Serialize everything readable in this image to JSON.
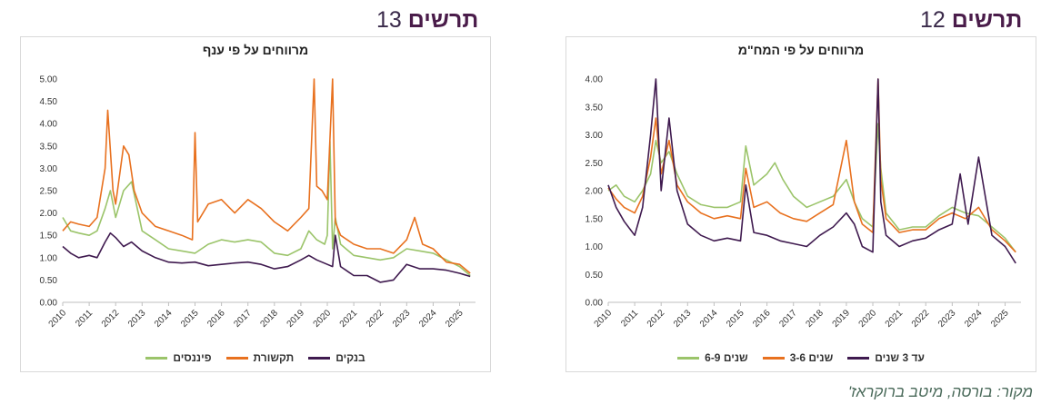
{
  "left_panel": {
    "heading_word": "תרשים",
    "heading_num": "13"
  },
  "right_panel": {
    "heading_word": "תרשים",
    "heading_num": "12"
  },
  "source_note": "מקור: בורסה, מיטב ברוקראז'",
  "chart_data": [
    {
      "type": "line",
      "title": "מרווחים על פי ענף",
      "ylim": [
        0,
        5
      ],
      "yticks": [
        "0.00",
        "0.50",
        "1.00",
        "1.50",
        "2.00",
        "2.50",
        "3.00",
        "3.50",
        "4.00",
        "4.50",
        "5.00"
      ],
      "xlim": [
        2010,
        2025.6
      ],
      "xticks": [
        "2010",
        "2011",
        "2012",
        "2013",
        "2014",
        "2015",
        "2016",
        "2017",
        "2018",
        "2019",
        "2020",
        "2021",
        "2022",
        "2023",
        "2024",
        "2025"
      ],
      "legend_position": "bottom",
      "series": [
        {
          "name": "בנקים",
          "color": "#3f1a4f",
          "x": [
            2010,
            2010.3,
            2010.6,
            2011,
            2011.3,
            2011.6,
            2011.8,
            2012,
            2012.3,
            2012.6,
            2013,
            2013.5,
            2014,
            2014.5,
            2015,
            2015.5,
            2016,
            2016.5,
            2017,
            2017.5,
            2018,
            2018.5,
            2019,
            2019.3,
            2019.6,
            2020,
            2020.2,
            2020.3,
            2020.5,
            2021,
            2021.5,
            2022,
            2022.5,
            2023,
            2023.5,
            2024,
            2024.5,
            2025,
            2025.4
          ],
          "values": [
            1.25,
            1.1,
            1.0,
            1.05,
            1.0,
            1.35,
            1.55,
            1.45,
            1.25,
            1.35,
            1.15,
            1.0,
            0.9,
            0.88,
            0.9,
            0.82,
            0.85,
            0.88,
            0.9,
            0.85,
            0.75,
            0.8,
            0.95,
            1.05,
            0.95,
            0.85,
            0.8,
            1.5,
            0.8,
            0.6,
            0.6,
            0.45,
            0.5,
            0.85,
            0.75,
            0.75,
            0.72,
            0.65,
            0.58
          ]
        },
        {
          "name": "תקשורת",
          "color": "#e8711f",
          "x": [
            2010,
            2010.3,
            2010.6,
            2011,
            2011.3,
            2011.6,
            2011.7,
            2011.9,
            2012,
            2012.3,
            2012.5,
            2012.7,
            2013,
            2013.5,
            2014,
            2014.5,
            2014.9,
            2015,
            2015.1,
            2015.5,
            2016,
            2016.5,
            2017,
            2017.5,
            2018,
            2018.5,
            2019,
            2019.3,
            2019.5,
            2019.6,
            2019.8,
            2020,
            2020.2,
            2020.3,
            2020.5,
            2021,
            2021.5,
            2022,
            2022.5,
            2023,
            2023.3,
            2023.6,
            2024,
            2024.5,
            2025,
            2025.4
          ],
          "values": [
            1.6,
            1.8,
            1.75,
            1.7,
            1.9,
            3.0,
            4.3,
            2.5,
            2.2,
            3.5,
            3.3,
            2.5,
            2.0,
            1.7,
            1.6,
            1.5,
            1.4,
            3.8,
            1.8,
            2.2,
            2.3,
            2.0,
            2.3,
            2.1,
            1.8,
            1.6,
            1.9,
            2.1,
            5.0,
            2.6,
            2.5,
            2.3,
            5.0,
            1.8,
            1.5,
            1.3,
            1.2,
            1.2,
            1.1,
            1.4,
            1.9,
            1.3,
            1.2,
            0.9,
            0.85,
            0.65
          ]
        },
        {
          "name": "פיננסים",
          "color": "#9bc46a",
          "x": [
            2010,
            2010.3,
            2010.6,
            2011,
            2011.3,
            2011.6,
            2011.8,
            2012,
            2012.3,
            2012.6,
            2013,
            2013.5,
            2014,
            2014.5,
            2015,
            2015.5,
            2016,
            2016.5,
            2017,
            2017.5,
            2018,
            2018.5,
            2019,
            2019.3,
            2019.6,
            2019.9,
            2020,
            2020.1,
            2020.2,
            2020.3,
            2020.5,
            2021,
            2021.5,
            2022,
            2022.5,
            2023,
            2023.5,
            2024,
            2024.5,
            2025,
            2025.4
          ],
          "values": [
            1.9,
            1.6,
            1.55,
            1.5,
            1.6,
            2.1,
            2.5,
            1.9,
            2.5,
            2.7,
            1.6,
            1.4,
            1.2,
            1.15,
            1.1,
            1.3,
            1.4,
            1.35,
            1.4,
            1.35,
            1.1,
            1.05,
            1.2,
            1.6,
            1.4,
            1.3,
            1.5,
            3.6,
            1.2,
            1.9,
            1.3,
            1.05,
            1.0,
            0.95,
            1.0,
            1.2,
            1.15,
            1.1,
            0.95,
            0.8,
            0.6
          ]
        }
      ]
    },
    {
      "type": "line",
      "title": "מרווחים על פי המח\"מ",
      "ylim": [
        0,
        4
      ],
      "yticks": [
        "0.00",
        "0.50",
        "1.00",
        "1.50",
        "2.00",
        "2.50",
        "3.00",
        "3.50",
        "4.00"
      ],
      "xlim": [
        2010,
        2025.6
      ],
      "xticks": [
        "2010",
        "2011",
        "2012",
        "2013",
        "2014",
        "2015",
        "2016",
        "2017",
        "2018",
        "2019",
        "2020",
        "2021",
        "2022",
        "2023",
        "2024",
        "2025"
      ],
      "legend_position": "bottom",
      "series": [
        {
          "name": "עד 3 שנים",
          "color": "#3f1a4f",
          "x": [
            2010,
            2010.3,
            2010.6,
            2011,
            2011.3,
            2011.6,
            2011.8,
            2012,
            2012.3,
            2012.6,
            2013,
            2013.5,
            2014,
            2014.5,
            2015,
            2015.2,
            2015.5,
            2016,
            2016.5,
            2017,
            2017.5,
            2018,
            2018.5,
            2019,
            2019.3,
            2019.6,
            2020,
            2020.2,
            2020.3,
            2020.5,
            2021,
            2021.5,
            2022,
            2022.5,
            2023,
            2023.3,
            2023.6,
            2024,
            2024.5,
            2025,
            2025.4
          ],
          "values": [
            2.1,
            1.7,
            1.45,
            1.2,
            1.7,
            3.0,
            4.0,
            2.0,
            3.3,
            2.0,
            1.4,
            1.2,
            1.1,
            1.15,
            1.1,
            2.1,
            1.25,
            1.2,
            1.1,
            1.05,
            1.0,
            1.2,
            1.35,
            1.6,
            1.4,
            1.0,
            0.9,
            4.0,
            1.8,
            1.2,
            1.0,
            1.1,
            1.15,
            1.3,
            1.4,
            2.3,
            1.4,
            2.6,
            1.2,
            1.0,
            0.7
          ]
        },
        {
          "name": "שנים 3-6",
          "color": "#e8711f",
          "x": [
            2010,
            2010.3,
            2010.6,
            2011,
            2011.3,
            2011.6,
            2011.8,
            2012,
            2012.3,
            2012.6,
            2013,
            2013.5,
            2014,
            2014.5,
            2015,
            2015.2,
            2015.5,
            2016,
            2016.5,
            2017,
            2017.5,
            2018,
            2018.5,
            2019,
            2019.3,
            2019.6,
            2020,
            2020.2,
            2020.3,
            2020.5,
            2021,
            2021.5,
            2022,
            2022.5,
            2023,
            2023.5,
            2024,
            2024.5,
            2025,
            2025.4
          ],
          "values": [
            2.05,
            1.85,
            1.7,
            1.6,
            1.9,
            2.6,
            3.3,
            2.3,
            2.9,
            2.1,
            1.8,
            1.6,
            1.5,
            1.55,
            1.5,
            2.4,
            1.7,
            1.8,
            1.6,
            1.5,
            1.45,
            1.6,
            1.75,
            2.9,
            1.8,
            1.4,
            1.25,
            4.0,
            2.2,
            1.5,
            1.25,
            1.3,
            1.3,
            1.5,
            1.6,
            1.5,
            1.7,
            1.3,
            1.1,
            0.9
          ]
        },
        {
          "name": "שנים 6-9",
          "color": "#9bc46a",
          "x": [
            2010,
            2010.3,
            2010.6,
            2011,
            2011.3,
            2011.6,
            2011.8,
            2012,
            2012.3,
            2012.6,
            2013,
            2013.5,
            2014,
            2014.5,
            2015,
            2015.2,
            2015.5,
            2016,
            2016.3,
            2016.6,
            2017,
            2017.5,
            2018,
            2018.5,
            2019,
            2019.3,
            2019.6,
            2020,
            2020.2,
            2020.3,
            2020.5,
            2021,
            2021.5,
            2022,
            2022.5,
            2023,
            2023.5,
            2024,
            2024.5,
            2025,
            2025.4
          ],
          "values": [
            2.0,
            2.1,
            1.9,
            1.8,
            2.0,
            2.3,
            2.9,
            2.5,
            2.7,
            2.3,
            1.9,
            1.75,
            1.7,
            1.7,
            1.8,
            2.8,
            2.1,
            2.3,
            2.5,
            2.2,
            1.9,
            1.7,
            1.8,
            1.9,
            2.2,
            1.8,
            1.5,
            1.35,
            3.2,
            2.4,
            1.6,
            1.3,
            1.35,
            1.35,
            1.55,
            1.7,
            1.6,
            1.55,
            1.35,
            1.15,
            0.9
          ]
        }
      ]
    }
  ]
}
